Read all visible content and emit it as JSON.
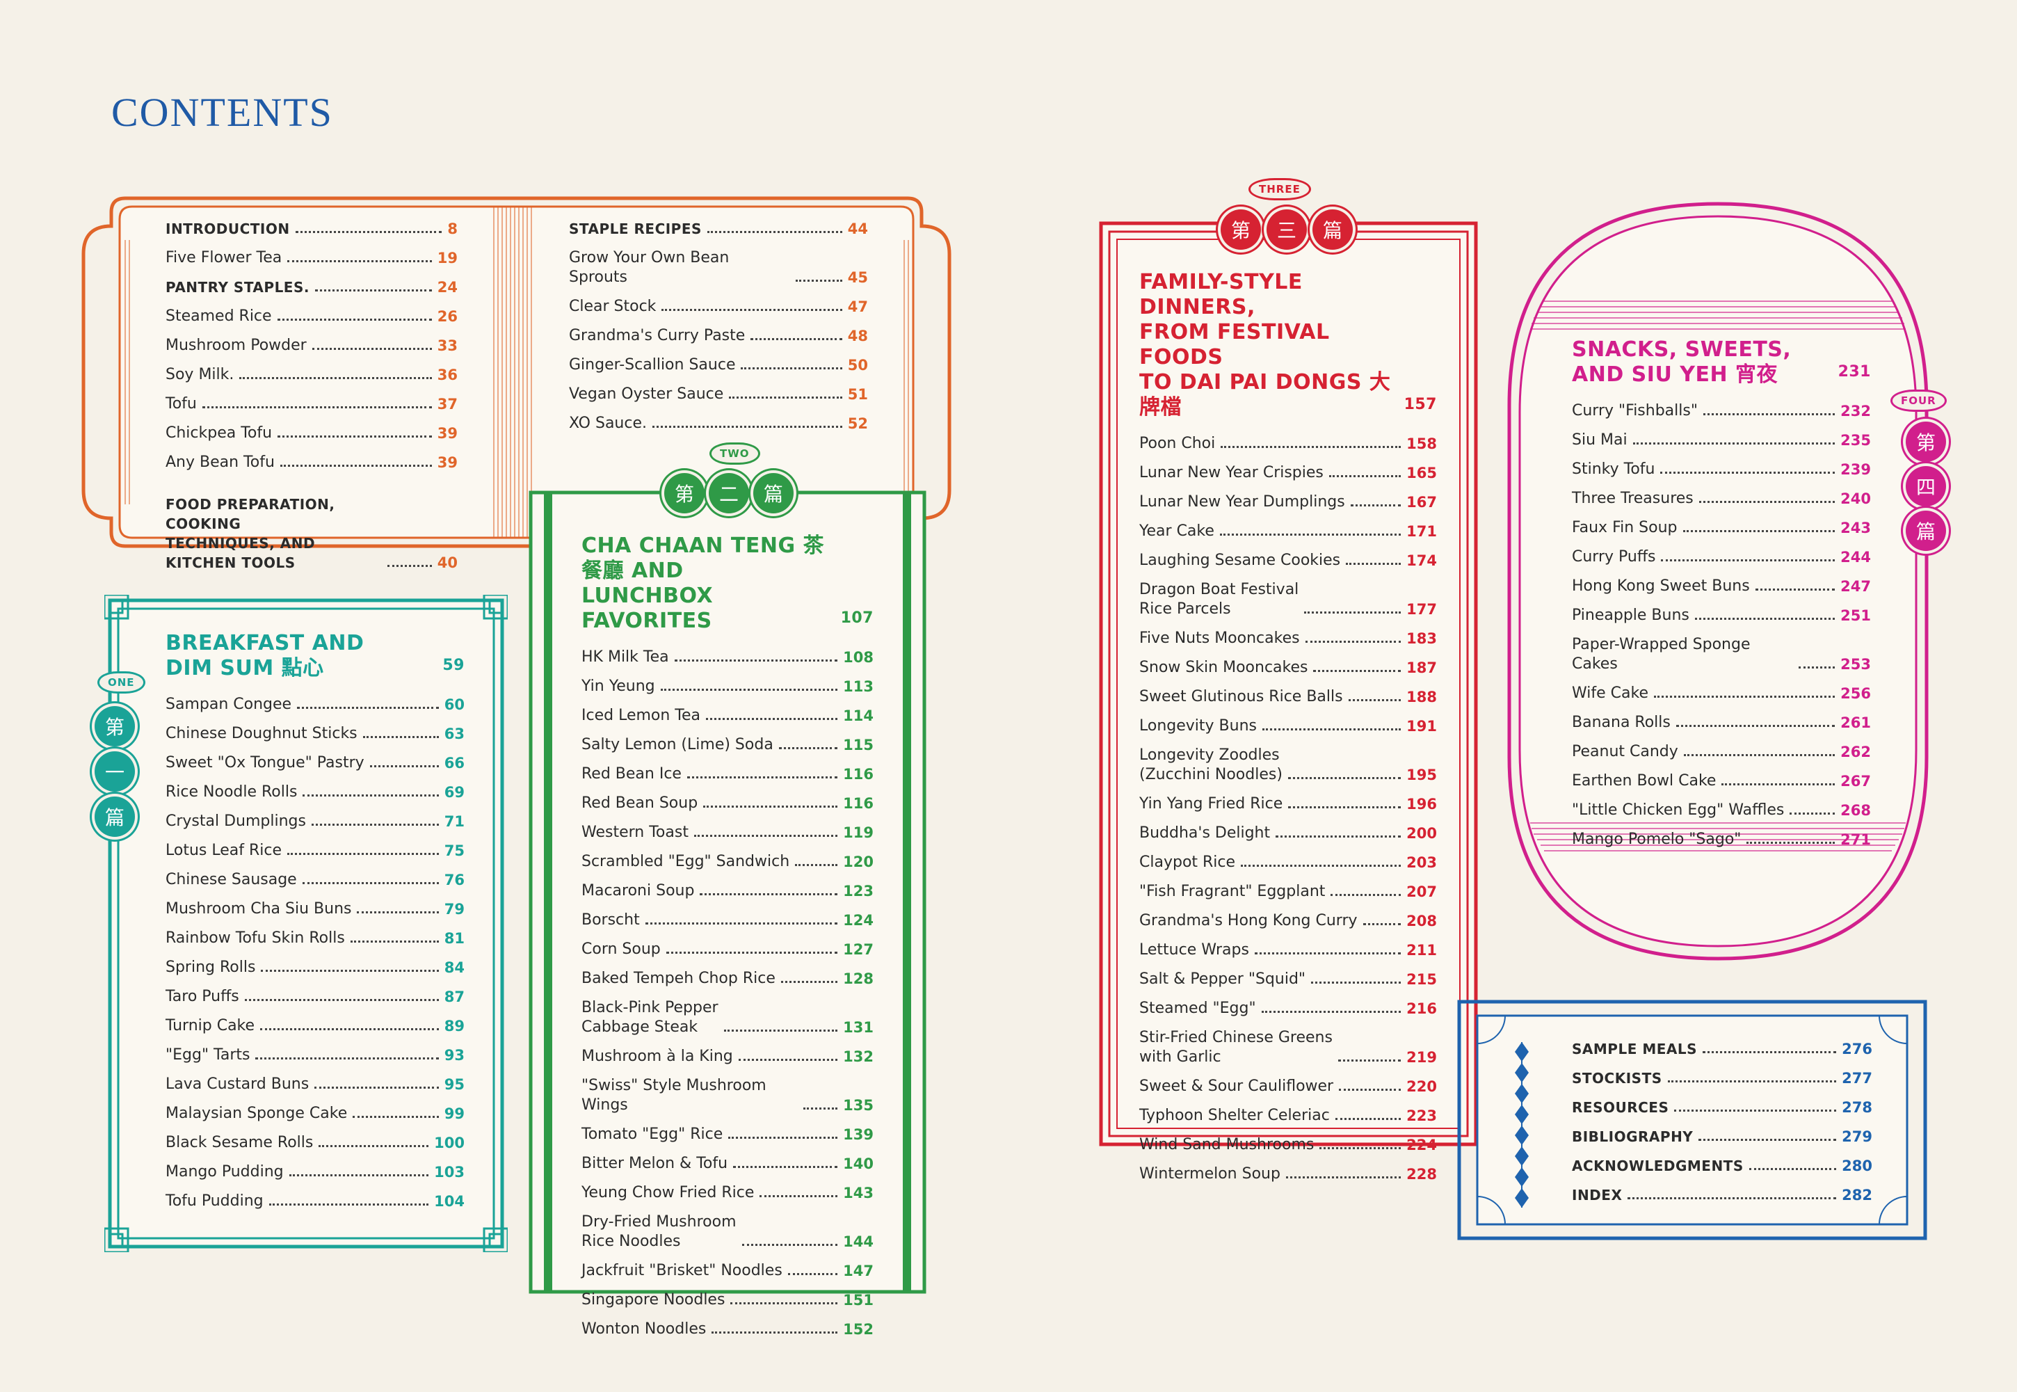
{
  "page": {
    "title": "CONTENTS"
  },
  "colors": {
    "orange": "#e0652a",
    "teal": "#1aa397",
    "green": "#2f9a47",
    "red": "#d62232",
    "magenta": "#d11f8c",
    "blue": "#1e63ae"
  },
  "intro_panel": {
    "left": [
      {
        "label": "INTRODUCTION",
        "page": "8",
        "caps": true
      },
      {
        "label": "Five Flower Tea",
        "page": "19"
      },
      {
        "label": "PANTRY STAPLES.",
        "page": "24",
        "caps": true
      },
      {
        "label": "Steamed Rice",
        "page": "26"
      },
      {
        "label": "Mushroom Powder",
        "page": "33"
      },
      {
        "label": "Soy Milk.",
        "page": "36"
      },
      {
        "label": "Tofu",
        "page": "37"
      },
      {
        "label": "Chickpea Tofu",
        "page": "39"
      },
      {
        "label": "Any Bean Tofu",
        "page": "39"
      },
      {
        "label": "FOOD PREPARATION, COOKING\nTECHNIQUES, AND KITCHEN TOOLS",
        "page": "40",
        "caps": true
      }
    ],
    "right": [
      {
        "label": "STAPLE RECIPES",
        "page": "44",
        "caps": true
      },
      {
        "label": "Grow Your Own Bean Sprouts",
        "page": "45"
      },
      {
        "label": "Clear Stock",
        "page": "47"
      },
      {
        "label": "Grandma's Curry Paste",
        "page": "48"
      },
      {
        "label": "Ginger-Scallion Sauce",
        "page": "50"
      },
      {
        "label": "Vegan Oyster Sauce",
        "page": "51"
      },
      {
        "label": "XO Sauce.",
        "page": "52"
      }
    ]
  },
  "section_one": {
    "badge": "ONE",
    "glyphs": [
      "第",
      "一",
      "篇"
    ],
    "heading": "BREAKFAST AND\nDIM SUM 點心",
    "heading_page": "59",
    "entries": [
      {
        "label": "Sampan Congee",
        "page": "60"
      },
      {
        "label": "Chinese Doughnut Sticks",
        "page": "63"
      },
      {
        "label": "Sweet \"Ox Tongue\" Pastry",
        "page": "66"
      },
      {
        "label": "Rice Noodle Rolls",
        "page": "69"
      },
      {
        "label": "Crystal Dumplings",
        "page": "71"
      },
      {
        "label": "Lotus Leaf Rice",
        "page": "75"
      },
      {
        "label": "Chinese Sausage",
        "page": "76"
      },
      {
        "label": "Mushroom Cha Siu Buns",
        "page": "79"
      },
      {
        "label": "Rainbow Tofu Skin Rolls",
        "page": "81"
      },
      {
        "label": "Spring Rolls",
        "page": "84"
      },
      {
        "label": "Taro Puffs",
        "page": "87"
      },
      {
        "label": "Turnip Cake",
        "page": "89"
      },
      {
        "label": "\"Egg\" Tarts",
        "page": "93"
      },
      {
        "label": "Lava Custard Buns",
        "page": "95"
      },
      {
        "label": "Malaysian Sponge Cake",
        "page": "99"
      },
      {
        "label": "Black Sesame Rolls",
        "page": "100"
      },
      {
        "label": "Mango Pudding",
        "page": "103"
      },
      {
        "label": "Tofu Pudding",
        "page": "104"
      }
    ]
  },
  "section_two": {
    "badge": "TWO",
    "glyphs": [
      "第",
      "二",
      "篇"
    ],
    "heading": "CHA CHAAN TENG 茶餐廳 AND\nLUNCHBOX FAVORITES",
    "heading_page": "107",
    "entries": [
      {
        "label": "HK Milk Tea",
        "page": "108"
      },
      {
        "label": "Yin Yeung",
        "page": "113"
      },
      {
        "label": "Iced Lemon Tea",
        "page": "114"
      },
      {
        "label": "Salty Lemon (Lime) Soda",
        "page": "115"
      },
      {
        "label": "Red Bean Ice",
        "page": "116"
      },
      {
        "label": "Red Bean Soup",
        "page": "116"
      },
      {
        "label": "Western Toast",
        "page": "119"
      },
      {
        "label": "Scrambled \"Egg\" Sandwich",
        "page": "120"
      },
      {
        "label": "Macaroni Soup",
        "page": "123"
      },
      {
        "label": "Borscht",
        "page": "124"
      },
      {
        "label": "Corn Soup",
        "page": "127"
      },
      {
        "label": "Baked Tempeh Chop Rice",
        "page": "128"
      },
      {
        "label": "Black-Pink Pepper\nCabbage Steak",
        "page": "131"
      },
      {
        "label": "Mushroom à la King",
        "page": "132"
      },
      {
        "label": "\"Swiss\" Style Mushroom Wings",
        "page": "135"
      },
      {
        "label": "Tomato \"Egg\" Rice",
        "page": "139"
      },
      {
        "label": "Bitter Melon & Tofu",
        "page": "140"
      },
      {
        "label": "Yeung Chow Fried Rice",
        "page": "143"
      },
      {
        "label": "Dry-Fried Mushroom\nRice Noodles",
        "page": "144"
      },
      {
        "label": "Jackfruit \"Brisket\" Noodles",
        "page": "147"
      },
      {
        "label": "Singapore Noodles",
        "page": "151"
      },
      {
        "label": "Wonton Noodles",
        "page": "152"
      }
    ]
  },
  "section_three": {
    "badge": "THREE",
    "glyphs": [
      "第",
      "三",
      "篇"
    ],
    "heading": "FAMILY-STYLE DINNERS,\nFROM FESTIVAL FOODS\nTO DAI PAI DONGS 大牌檔",
    "heading_page": "157",
    "entries": [
      {
        "label": "Poon Choi",
        "page": "158"
      },
      {
        "label": "Lunar New Year Crispies",
        "page": "165"
      },
      {
        "label": "Lunar New Year Dumplings",
        "page": "167"
      },
      {
        "label": "Year Cake",
        "page": "171"
      },
      {
        "label": "Laughing Sesame Cookies",
        "page": "174"
      },
      {
        "label": "Dragon Boat Festival\nRice Parcels",
        "page": "177"
      },
      {
        "label": "Five Nuts Mooncakes",
        "page": "183"
      },
      {
        "label": "Snow Skin Mooncakes",
        "page": "187"
      },
      {
        "label": "Sweet Glutinous Rice Balls",
        "page": "188"
      },
      {
        "label": "Longevity Buns",
        "page": "191"
      },
      {
        "label": "Longevity Zoodles\n(Zucchini Noodles)",
        "page": "195"
      },
      {
        "label": "Yin Yang Fried Rice",
        "page": "196"
      },
      {
        "label": "Buddha's Delight",
        "page": "200"
      },
      {
        "label": "Claypot Rice",
        "page": "203"
      },
      {
        "label": "\"Fish Fragrant\" Eggplant",
        "page": "207"
      },
      {
        "label": "Grandma's Hong Kong Curry",
        "page": "208"
      },
      {
        "label": "Lettuce Wraps",
        "page": "211"
      },
      {
        "label": "Salt & Pepper \"Squid\"",
        "page": "215"
      },
      {
        "label": "Steamed \"Egg\"",
        "page": "216"
      },
      {
        "label": "Stir-Fried Chinese Greens\nwith Garlic",
        "page": "219"
      },
      {
        "label": "Sweet & Sour Cauliflower",
        "page": "220"
      },
      {
        "label": "Typhoon Shelter Celeriac",
        "page": "223"
      },
      {
        "label": "Wind Sand Mushrooms",
        "page": "224"
      },
      {
        "label": "Wintermelon Soup",
        "page": "228"
      }
    ]
  },
  "section_four": {
    "badge": "FOUR",
    "glyphs": [
      "第",
      "四",
      "篇"
    ],
    "heading": "SNACKS, SWEETS,\nAND SIU YEH 宵夜",
    "heading_page": "231",
    "entries": [
      {
        "label": "Curry \"Fishballs\"",
        "page": "232"
      },
      {
        "label": "Siu Mai",
        "page": "235"
      },
      {
        "label": "Stinky Tofu",
        "page": "239"
      },
      {
        "label": "Three Treasures",
        "page": "240"
      },
      {
        "label": "Faux Fin Soup",
        "page": "243"
      },
      {
        "label": "Curry Puffs",
        "page": "244"
      },
      {
        "label": "Hong Kong Sweet Buns",
        "page": "247"
      },
      {
        "label": "Pineapple Buns",
        "page": "251"
      },
      {
        "label": "Paper-Wrapped Sponge Cakes",
        "page": "253"
      },
      {
        "label": "Wife Cake",
        "page": "256"
      },
      {
        "label": "Banana Rolls",
        "page": "261"
      },
      {
        "label": "Peanut Candy",
        "page": "262"
      },
      {
        "label": "Earthen Bowl Cake",
        "page": "267"
      },
      {
        "label": "\"Little Chicken Egg\" Waffles",
        "page": "268"
      },
      {
        "label": "Mango Pomelo \"Sago\"",
        "page": "271"
      }
    ]
  },
  "back_matter": {
    "entries": [
      {
        "label": "SAMPLE MEALS",
        "page": "276",
        "caps": true
      },
      {
        "label": "STOCKISTS",
        "page": "277",
        "caps": true
      },
      {
        "label": "RESOURCES",
        "page": "278",
        "caps": true
      },
      {
        "label": "BIBLIOGRAPHY",
        "page": "279",
        "caps": true
      },
      {
        "label": "ACKNOWLEDGMENTS",
        "page": "280",
        "caps": true
      },
      {
        "label": "INDEX",
        "page": "282",
        "caps": true
      }
    ]
  }
}
